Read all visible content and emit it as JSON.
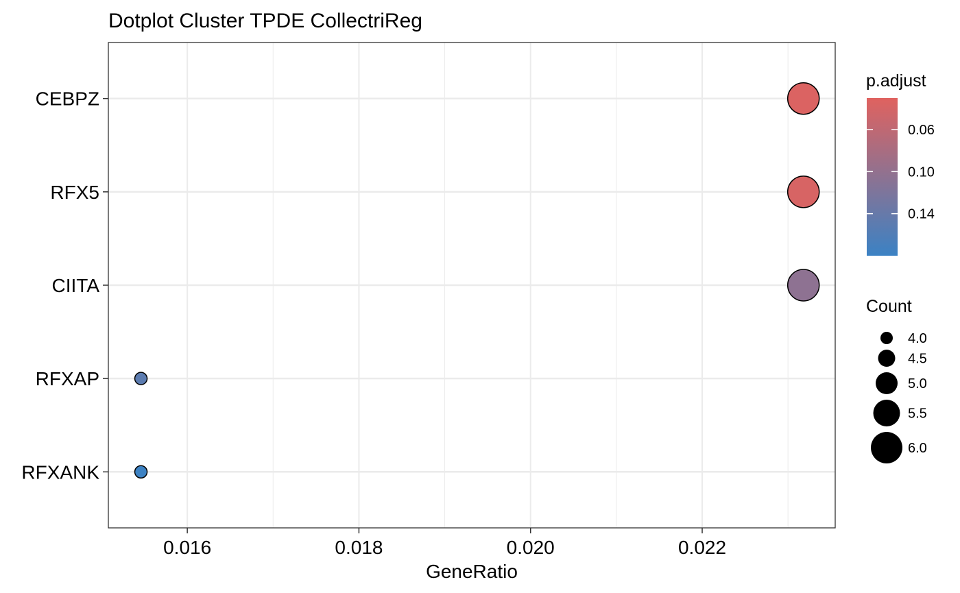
{
  "chart_data": {
    "type": "scatter",
    "title": "Dotplot Cluster TPDE CollectriReg",
    "xlabel": "GeneRatio",
    "ylabel": "",
    "xlim": [
      0.01508,
      0.02355
    ],
    "x_ticks": [
      0.016,
      0.018,
      0.02,
      0.022
    ],
    "x_tick_labels": [
      "0.016",
      "0.018",
      "0.020",
      "0.022"
    ],
    "categories": [
      "CEBPZ",
      "RFX5",
      "CIITA",
      "RFXAP",
      "RFXANK"
    ],
    "points": [
      {
        "label": "CEBPZ",
        "gene_ratio": 0.02318,
        "count": 6,
        "p_adjust": 0.035
      },
      {
        "label": "RFX5",
        "gene_ratio": 0.02318,
        "count": 6,
        "p_adjust": 0.038
      },
      {
        "label": "CIITA",
        "gene_ratio": 0.02318,
        "count": 6,
        "p_adjust": 0.105
      },
      {
        "label": "RFXAP",
        "gene_ratio": 0.01546,
        "count": 4,
        "p_adjust": 0.15
      },
      {
        "label": "RFXANK",
        "gene_ratio": 0.01546,
        "count": 4,
        "p_adjust": 0.178
      }
    ],
    "grid": true,
    "legend_position": "right",
    "color_legend": {
      "title": "p.adjust",
      "range": [
        0.03,
        0.18
      ],
      "ticks": [
        0.06,
        0.1,
        0.14
      ],
      "tick_labels": [
        "0.06",
        "0.10",
        "0.14"
      ],
      "low_color": "#e0625f",
      "high_color": "#3b82c4"
    },
    "size_legend": {
      "title": "Count",
      "values": [
        4.0,
        4.5,
        5.0,
        5.5,
        6.0
      ],
      "labels": [
        "4.0",
        "4.5",
        "5.0",
        "5.5",
        "6.0"
      ]
    }
  }
}
